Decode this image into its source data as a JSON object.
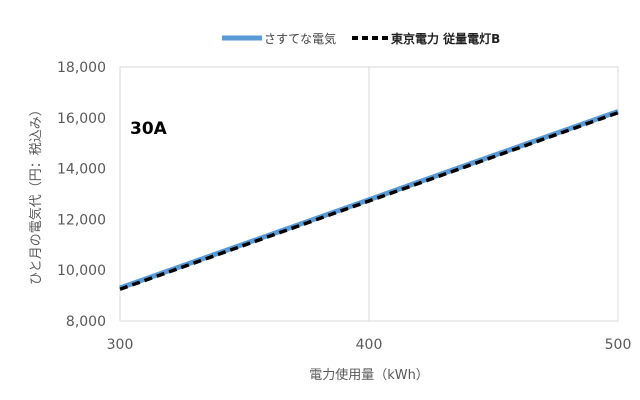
{
  "chart_data": {
    "type": "line",
    "annotation": "30A",
    "xlabel": "電力使用量（kWh）",
    "ylabel": "ひと月の電気代（円：税込み）",
    "xlim": [
      300,
      500
    ],
    "ylim": [
      8000,
      18000
    ],
    "x_ticks": [
      "300",
      "400",
      "500"
    ],
    "y_ticks": [
      "8,000",
      "10,000",
      "12,000",
      "14,000",
      "16,000",
      "18,000"
    ],
    "x_tick_values": [
      300,
      400,
      500
    ],
    "y_tick_values": [
      8000,
      10000,
      12000,
      14000,
      16000,
      18000
    ],
    "grid": "vertical",
    "legend_position": "top",
    "series": [
      {
        "name": "さすてな電気",
        "x": [
          300,
          500
        ],
        "y": [
          9300,
          16250
        ],
        "color": "#5b9bd5",
        "style": "solid"
      },
      {
        "name": "東京電力 従量電灯B",
        "x": [
          300,
          500
        ],
        "y": [
          9250,
          16200
        ],
        "color": "#000000",
        "style": "dashed"
      }
    ]
  }
}
